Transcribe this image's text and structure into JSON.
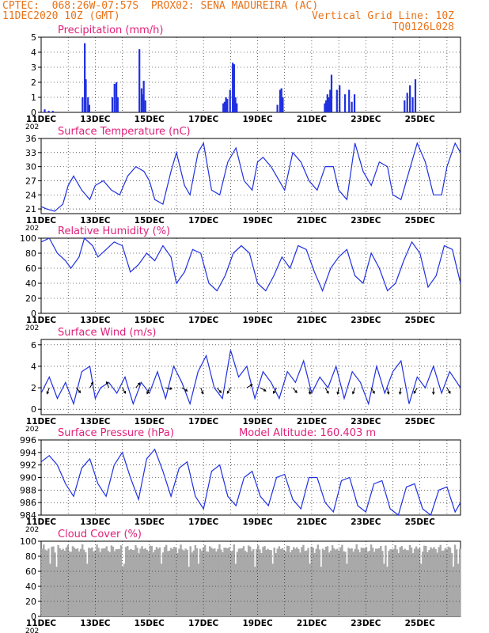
{
  "header": {
    "line1": "CPTEC:  068:26W-07:57S  PROX02: SENA MADUREIRA (AC)",
    "line2": "11DEC2020 10Z (GMT)",
    "right1": "Vertical Grid Line: 10Z",
    "right2": "TQ0126L028"
  },
  "colors": {
    "header": "#e8731a",
    "title": "#e0207a",
    "series": "#2030e0",
    "cloud": "#a9a9a9",
    "grid": "#000000"
  },
  "x_axis": {
    "tick_labels": [
      "11DEC",
      "13DEC",
      "15DEC",
      "17DEC",
      "19DEC",
      "21DEC",
      "23DEC",
      "25DEC"
    ],
    "tick_days": [
      0,
      2,
      4,
      6,
      8,
      10,
      12,
      14
    ],
    "range_days": [
      0,
      15.5
    ],
    "year_fragment": "202"
  },
  "chart_data": [
    {
      "type": "bar",
      "title": "Precipitation (mm/h)",
      "ylim": [
        0,
        5
      ],
      "yticks": [
        0,
        1,
        2,
        3,
        4,
        5
      ],
      "series": [
        {
          "x": [
            0.1,
            0.25,
            0.4,
            1.5,
            1.58,
            1.62,
            1.7,
            1.75,
            2.6,
            2.68,
            2.75,
            2.8,
            3.6,
            3.68,
            3.7,
            3.76,
            3.82,
            6.7,
            6.75,
            6.8,
            6.85,
            6.95,
            7.05,
            7.1,
            7.15,
            7.2,
            8.7,
            8.8,
            8.85,
            8.9,
            10.45,
            10.5,
            10.55,
            10.6,
            10.65,
            10.7,
            10.9,
            11.0,
            11.2,
            11.35,
            11.45,
            11.55,
            13.4,
            13.5,
            13.6,
            13.7,
            13.8
          ],
          "values": [
            0.2,
            0.1,
            0.1,
            1.0,
            4.6,
            2.2,
            1.0,
            0.5,
            1.0,
            1.9,
            2.0,
            1.0,
            4.2,
            1.6,
            1.2,
            2.1,
            0.8,
            0.6,
            0.7,
            1.0,
            0.9,
            1.5,
            3.3,
            3.2,
            1.0,
            0.6,
            0.5,
            1.5,
            1.6,
            1.0,
            0.6,
            0.8,
            1.2,
            1.0,
            1.5,
            2.5,
            1.5,
            1.8,
            1.2,
            1.5,
            0.7,
            1.2,
            0.8,
            1.3,
            1.8,
            1.0,
            2.2
          ]
        }
      ]
    },
    {
      "type": "line",
      "title": "Surface Temperature (nC)",
      "ylim": [
        20,
        36
      ],
      "yticks": [
        21,
        24,
        27,
        30,
        33,
        36
      ],
      "series": [
        {
          "x": [
            0,
            0.2,
            0.5,
            0.8,
            1.0,
            1.2,
            1.5,
            1.8,
            2.0,
            2.3,
            2.6,
            2.9,
            3.2,
            3.5,
            3.8,
            4.0,
            4.2,
            4.5,
            4.8,
            5.0,
            5.3,
            5.5,
            5.8,
            6.0,
            6.3,
            6.6,
            6.9,
            7.2,
            7.5,
            7.8,
            8.0,
            8.2,
            8.5,
            8.8,
            9.0,
            9.3,
            9.6,
            9.9,
            10.2,
            10.5,
            10.8,
            11.0,
            11.3,
            11.6,
            11.9,
            12.2,
            12.5,
            12.8,
            13.0,
            13.3,
            13.6,
            13.9,
            14.2,
            14.5,
            14.8,
            15.0,
            15.3,
            15.5
          ],
          "values": [
            21.5,
            21,
            20.5,
            22,
            26,
            28,
            25,
            23,
            26,
            27,
            25,
            24,
            28,
            30,
            29,
            27,
            23,
            22,
            29,
            33,
            26,
            24,
            33,
            35,
            25,
            24,
            31,
            34,
            27,
            25,
            31,
            32,
            30,
            27,
            25,
            33,
            31,
            27,
            25,
            30,
            30,
            25,
            23,
            35,
            29,
            26,
            31,
            30,
            24,
            23,
            29,
            35,
            31,
            24,
            24,
            30,
            35,
            33
          ]
        }
      ]
    },
    {
      "type": "line",
      "title": "Relative Humidity (%)",
      "ylim": [
        0,
        100
      ],
      "yticks": [
        0,
        20,
        40,
        60,
        80,
        100
      ],
      "series": [
        {
          "x": [
            0,
            0.3,
            0.6,
            0.9,
            1.1,
            1.4,
            1.6,
            1.9,
            2.1,
            2.4,
            2.7,
            3.0,
            3.3,
            3.6,
            3.9,
            4.2,
            4.5,
            4.8,
            5.0,
            5.3,
            5.6,
            5.9,
            6.2,
            6.5,
            6.8,
            7.1,
            7.4,
            7.7,
            8.0,
            8.3,
            8.6,
            8.9,
            9.2,
            9.5,
            9.8,
            10.1,
            10.4,
            10.7,
            11.0,
            11.3,
            11.6,
            11.9,
            12.2,
            12.5,
            12.8,
            13.1,
            13.4,
            13.7,
            14.0,
            14.3,
            14.6,
            14.9,
            15.2,
            15.5
          ],
          "values": [
            95,
            100,
            80,
            70,
            60,
            75,
            100,
            90,
            75,
            85,
            95,
            90,
            55,
            65,
            80,
            70,
            90,
            75,
            40,
            55,
            85,
            80,
            40,
            30,
            50,
            80,
            90,
            80,
            40,
            30,
            50,
            75,
            60,
            90,
            85,
            55,
            30,
            60,
            75,
            85,
            50,
            40,
            80,
            60,
            30,
            40,
            70,
            95,
            80,
            35,
            50,
            90,
            85,
            40
          ]
        }
      ]
    },
    {
      "type": "line",
      "title": "Surface Wind (m/s)",
      "ylim": [
        -0.5,
        6.5
      ],
      "yticks": [
        0,
        2,
        4,
        6
      ],
      "series": [
        {
          "x": [
            0,
            0.3,
            0.6,
            0.9,
            1.2,
            1.5,
            1.8,
            2.0,
            2.2,
            2.5,
            2.8,
            3.1,
            3.4,
            3.7,
            4.0,
            4.3,
            4.6,
            4.9,
            5.2,
            5.5,
            5.8,
            6.1,
            6.4,
            6.7,
            7.0,
            7.3,
            7.6,
            7.9,
            8.2,
            8.5,
            8.8,
            9.1,
            9.4,
            9.7,
            10.0,
            10.3,
            10.6,
            10.9,
            11.2,
            11.5,
            11.8,
            12.1,
            12.4,
            12.7,
            13.0,
            13.3,
            13.6,
            13.9,
            14.2,
            14.5,
            14.8,
            15.1,
            15.5
          ],
          "values": [
            1.5,
            3.0,
            1.0,
            2.5,
            0.5,
            3.5,
            4.0,
            1.0,
            2.0,
            2.5,
            1.5,
            3.0,
            0.5,
            2.5,
            1.5,
            3.5,
            1.0,
            4.0,
            2.5,
            0.5,
            3.5,
            5.0,
            2.0,
            1.0,
            5.5,
            3.0,
            4.0,
            1.0,
            3.5,
            2.5,
            1.0,
            3.5,
            2.5,
            4.5,
            1.5,
            3.0,
            2.0,
            4.0,
            1.0,
            3.5,
            2.5,
            0.5,
            4.0,
            1.5,
            3.5,
            4.5,
            0.5,
            3.0,
            2.0,
            4.0,
            1.5,
            3.5,
            2.0
          ]
        }
      ],
      "arrows": {
        "x": [
          0.3,
          1.3,
          1.8,
          2.5,
          3.0,
          3.5,
          4.0,
          4.6,
          5.2,
          5.9,
          6.5,
          7.0,
          7.6,
          8.1,
          8.7,
          9.3,
          9.9,
          10.5,
          11.0,
          11.6,
          12.2,
          12.8,
          13.3,
          13.9,
          14.5,
          15.0
        ],
        "dir_deg": [
          200,
          140,
          30,
          340,
          150,
          40,
          200,
          100,
          120,
          160,
          140,
          210,
          60,
          120,
          210,
          140,
          170,
          150,
          190,
          200,
          150,
          170,
          190,
          210,
          180,
          150
        ]
      }
    },
    {
      "type": "line",
      "title": "Surface Pressure (hPa)",
      "annotation": "Model Altitude: 160.403  m",
      "ylim": [
        984,
        996
      ],
      "yticks": [
        984,
        986,
        988,
        990,
        992,
        994,
        996
      ],
      "series": [
        {
          "x": [
            0,
            0.3,
            0.6,
            0.9,
            1.2,
            1.5,
            1.8,
            2.1,
            2.4,
            2.7,
            3.0,
            3.3,
            3.6,
            3.9,
            4.2,
            4.5,
            4.8,
            5.1,
            5.4,
            5.7,
            6.0,
            6.3,
            6.6,
            6.9,
            7.2,
            7.5,
            7.8,
            8.1,
            8.4,
            8.7,
            9.0,
            9.3,
            9.6,
            9.9,
            10.2,
            10.5,
            10.8,
            11.1,
            11.4,
            11.7,
            12.0,
            12.3,
            12.6,
            12.9,
            13.2,
            13.5,
            13.8,
            14.1,
            14.4,
            14.7,
            15.0,
            15.3,
            15.5
          ],
          "values": [
            992.5,
            993.5,
            992,
            989,
            987,
            991.5,
            993,
            989,
            987,
            992,
            994,
            990,
            986.5,
            993,
            994.5,
            991,
            987,
            991.5,
            992.5,
            987,
            985,
            991,
            992,
            987,
            985.5,
            990,
            991,
            987,
            985.5,
            990,
            990.5,
            986.5,
            985,
            990,
            990,
            986,
            984.5,
            989.5,
            990,
            985.5,
            984.5,
            989,
            989.5,
            985,
            984,
            988.5,
            989,
            985,
            984,
            988,
            988.5,
            984.5,
            986
          ]
        }
      ]
    },
    {
      "type": "bar",
      "title": "Cloud Cover (%)",
      "ylim": [
        0,
        100
      ],
      "yticks": [
        0,
        20,
        40,
        60,
        80,
        100
      ],
      "series": [
        {
          "x": [
            0,
            15.5
          ],
          "values": [
            90,
            90
          ]
        }
      ],
      "note_values": "Cover stays between about 65 and 98 percent throughout."
    }
  ]
}
